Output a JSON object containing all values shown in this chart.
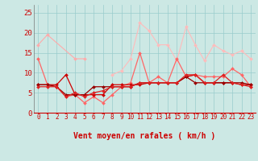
{
  "xlabel": "Vent moyen/en rafales ( km/h )",
  "x": [
    0,
    1,
    2,
    3,
    4,
    5,
    6,
    7,
    8,
    9,
    10,
    11,
    12,
    13,
    14,
    15,
    16,
    17,
    18,
    19,
    20,
    21,
    22,
    23
  ],
  "background_color": "#cce8e4",
  "grid_color": "#99cccc",
  "lines": [
    {
      "color": "#ffaaaa",
      "marker": "D",
      "markersize": 2.0,
      "linewidth": 0.8,
      "values": [
        17.0,
        19.5,
        null,
        null,
        13.5,
        13.5,
        null,
        null,
        null,
        null,
        null,
        null,
        null,
        null,
        null,
        null,
        null,
        null,
        null,
        null,
        null,
        null,
        null,
        null
      ]
    },
    {
      "color": "#ffbbbb",
      "marker": "D",
      "markersize": 2.0,
      "linewidth": 0.8,
      "values": [
        null,
        null,
        null,
        null,
        null,
        null,
        null,
        null,
        9.5,
        10.5,
        13.5,
        22.5,
        20.5,
        17.0,
        17.0,
        13.0,
        21.5,
        17.0,
        13.0,
        17.0,
        15.5,
        14.5,
        15.5,
        13.5
      ]
    },
    {
      "color": "#ff6666",
      "marker": "D",
      "markersize": 2.0,
      "linewidth": 0.9,
      "values": [
        13.5,
        7.0,
        6.5,
        4.0,
        4.5,
        2.5,
        4.0,
        2.5,
        4.5,
        6.5,
        7.5,
        15.0,
        7.5,
        9.0,
        7.5,
        13.5,
        9.0,
        9.5,
        9.0,
        9.0,
        9.0,
        11.0,
        9.5,
        6.5
      ]
    },
    {
      "color": "#cc0000",
      "marker": "D",
      "markersize": 2.0,
      "linewidth": 0.9,
      "values": [
        7.0,
        7.0,
        7.0,
        9.5,
        4.5,
        4.5,
        4.5,
        4.5,
        7.0,
        7.0,
        7.0,
        7.0,
        7.5,
        7.5,
        7.5,
        7.5,
        9.0,
        9.5,
        7.5,
        7.5,
        7.5,
        7.5,
        7.0,
        7.0
      ]
    },
    {
      "color": "#990000",
      "marker": "D",
      "markersize": 2.0,
      "linewidth": 0.9,
      "values": [
        7.0,
        7.0,
        6.5,
        4.5,
        4.5,
        4.5,
        6.5,
        6.5,
        6.5,
        6.5,
        6.5,
        7.5,
        7.5,
        7.5,
        7.5,
        7.5,
        9.0,
        7.5,
        7.5,
        7.5,
        7.5,
        7.5,
        7.5,
        7.0
      ]
    },
    {
      "color": "#dd2222",
      "marker": "D",
      "markersize": 2.0,
      "linewidth": 0.9,
      "values": [
        6.5,
        6.5,
        6.5,
        4.0,
        5.0,
        4.0,
        5.0,
        5.5,
        6.5,
        6.5,
        6.5,
        7.5,
        7.5,
        7.5,
        7.5,
        7.5,
        9.5,
        9.5,
        7.5,
        7.5,
        9.5,
        7.5,
        7.0,
        6.5
      ]
    }
  ],
  "ylim": [
    0,
    27
  ],
  "yticks": [
    0,
    5,
    10,
    15,
    20,
    25
  ],
  "xticks": [
    0,
    1,
    2,
    3,
    4,
    5,
    6,
    7,
    8,
    9,
    10,
    11,
    12,
    13,
    14,
    15,
    16,
    17,
    18,
    19,
    20,
    21,
    22,
    23
  ],
  "arrow_symbols": [
    "↗",
    "↑",
    "↗",
    "↗",
    "↑",
    ">",
    "↘",
    "↖",
    "↑",
    "↙",
    "←",
    "↙",
    "↓",
    "↓",
    "↓",
    "↓",
    "↓",
    "↓",
    "↓",
    "↘",
    "↙",
    "↓",
    "↘",
    "↓"
  ],
  "xlabel_color": "#cc0000",
  "xlabel_fontsize": 7,
  "tick_color": "#cc0000",
  "tick_fontsize": 5.5,
  "ytick_fontsize": 6.5,
  "arrow_fontsize": 5.0
}
